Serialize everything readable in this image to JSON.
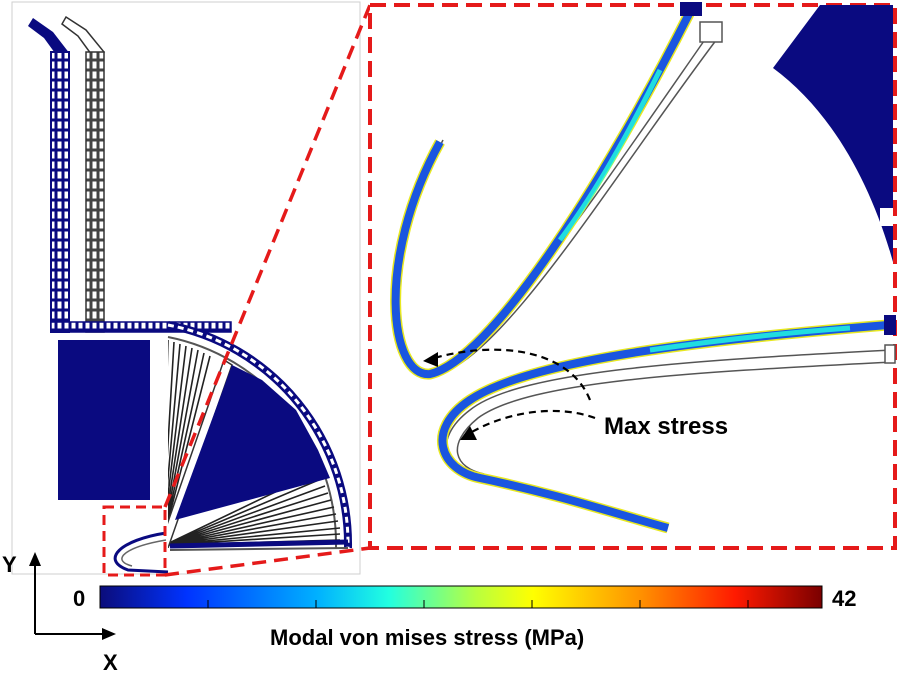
{
  "annotation": {
    "text": "Max stress"
  },
  "axes": {
    "y": "Y",
    "x": "X"
  },
  "colorbar": {
    "min": "0",
    "max": "42",
    "label": "Modal von mises stress (MPa)",
    "stops": [
      "#0b0c7a",
      "#0033ff",
      "#00b0ff",
      "#22ffe0",
      "#b8ff40",
      "#ffff00",
      "#ff9000",
      "#ff1a00",
      "#7a0000"
    ]
  },
  "colors": {
    "structure": "#0a0a80",
    "zoom_box": "#e51a1a",
    "high_stress": "#22ffe0"
  }
}
